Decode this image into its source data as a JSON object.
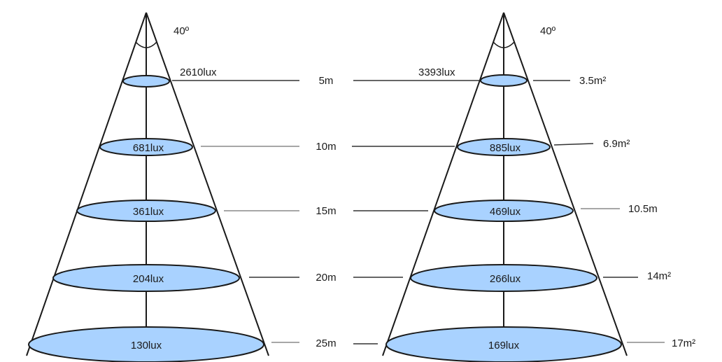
{
  "colors": {
    "ellipse_fill": "#a9d2ff",
    "line": "#1a1a1a"
  },
  "left_cone": {
    "angle_label": "40º",
    "levels": [
      {
        "lux": "2610lux"
      },
      {
        "lux": "681lux"
      },
      {
        "lux": "361lux"
      },
      {
        "lux": "204lux"
      },
      {
        "lux": "130lux"
      }
    ]
  },
  "distances": [
    "5m",
    "10m",
    "15m",
    "20m",
    "25m"
  ],
  "right_cone": {
    "angle_label": "40º",
    "levels": [
      {
        "lux": "3393lux",
        "area": "3.5m²"
      },
      {
        "lux": "885lux",
        "area": "6.9m²"
      },
      {
        "lux": "469lux",
        "area": "10.5m"
      },
      {
        "lux": "266lux",
        "area": "14m²"
      },
      {
        "lux": "169lux",
        "area": "17m²"
      }
    ]
  }
}
